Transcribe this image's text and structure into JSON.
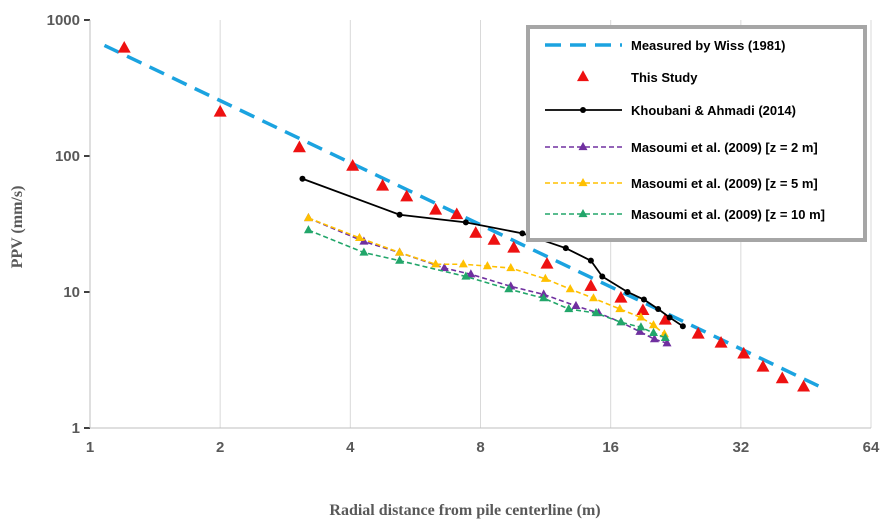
{
  "chart_data": {
    "type": "scatter",
    "xlabel": "Radial distance from pile centerline (m)",
    "ylabel": "PPV (mm/s)",
    "xscale": "log2",
    "yscale": "log10",
    "xlim": [
      1,
      64
    ],
    "ylim": [
      1,
      1000
    ],
    "x_ticks": [
      "1",
      "2",
      "4",
      "8",
      "16",
      "32",
      "64"
    ],
    "y_ticks": [
      "1",
      "10",
      "100",
      "1000"
    ],
    "grid": "vertical",
    "legend_position": "top-right",
    "series": [
      {
        "name": "Measured by Wiss (1981)",
        "style": "dashed-line",
        "color": "#1BA3E0",
        "x": [
          1.08,
          49.0
        ],
        "y": [
          650,
          2.0
        ]
      },
      {
        "name": "This Study",
        "style": "triangle-markers",
        "color": "#EE1111",
        "x": [
          1.2,
          2.0,
          3.05,
          4.05,
          4.75,
          5.4,
          6.3,
          7.05,
          7.8,
          8.6,
          9.55,
          11.4,
          14.4,
          16.9,
          19.0,
          21.4,
          25.5,
          28.8,
          32.5,
          36.0,
          39.9,
          44.7
        ],
        "y": [
          620,
          210,
          115,
          84,
          60,
          50,
          40,
          37,
          27,
          24,
          21,
          16,
          11,
          9,
          7.3,
          6.2,
          4.9,
          4.2,
          3.5,
          2.8,
          2.3,
          2.0
        ]
      },
      {
        "name": "Khoubani & Ahmadi (2014)",
        "style": "solid-line-dots",
        "color": "#000000",
        "x": [
          3.1,
          5.2,
          7.4,
          10.0,
          12.6,
          14.4,
          15.3,
          17.5,
          19.1,
          20.6,
          21.9,
          23.5
        ],
        "y": [
          68,
          37,
          32.5,
          27,
          21,
          17,
          13,
          10,
          8.8,
          7.5,
          6.5,
          5.6
        ]
      },
      {
        "name": "Masoumi et al. (2009) [z = 2 m]",
        "style": "dashed-line-triangles",
        "color": "#7030A0",
        "x": [
          3.2,
          4.3,
          5.2,
          6.6,
          7.6,
          9.4,
          11.2,
          13.3,
          15.0,
          16.9,
          18.7,
          20.2,
          21.6
        ],
        "y": [
          35,
          23.5,
          19.5,
          15,
          13.5,
          11,
          9.6,
          7.9,
          7.0,
          6.0,
          5.1,
          4.5,
          4.2
        ]
      },
      {
        "name": "Masoumi et al. (2009) [z = 5 m]",
        "style": "dashed-line-triangles",
        "color": "#FFC000",
        "x": [
          3.2,
          4.2,
          5.2,
          6.3,
          7.3,
          8.3,
          9.4,
          11.3,
          12.9,
          14.6,
          16.8,
          18.8,
          20.1,
          21.3
        ],
        "y": [
          35,
          25,
          19.5,
          16,
          16,
          15.5,
          15,
          12.5,
          10.5,
          9,
          7.5,
          6.5,
          5.7,
          4.9
        ]
      },
      {
        "name": "Masoumi et al. (2009) [z = 10 m]",
        "style": "dashed-line-triangles",
        "color": "#22A66A",
        "x": [
          3.2,
          4.3,
          5.2,
          7.4,
          9.3,
          11.2,
          12.8,
          14.8,
          16.9,
          18.8,
          20.1,
          21.4
        ],
        "y": [
          28.5,
          19.5,
          17,
          13,
          10.5,
          9,
          7.5,
          7,
          6,
          5.5,
          5,
          4.6
        ]
      }
    ]
  }
}
